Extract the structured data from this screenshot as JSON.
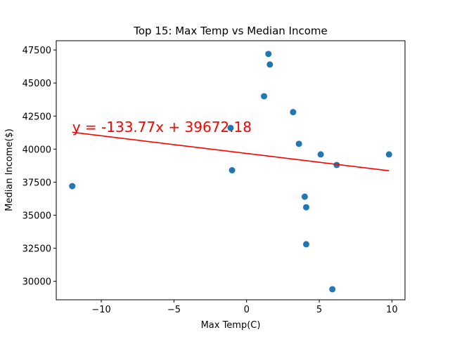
{
  "chart_data": {
    "type": "scatter",
    "title": "Top 15: Max Temp vs Median Income",
    "xlabel": "Max Temp(C)",
    "ylabel": "Median Income($)",
    "xlim": [
      -13.1,
      10.9
    ],
    "ylim": [
      28600,
      48200
    ],
    "xticks": [
      -10,
      -5,
      0,
      5,
      10
    ],
    "xtick_labels": [
      "−10",
      "−5",
      "0",
      "5",
      "10"
    ],
    "yticks": [
      30000,
      32500,
      35000,
      37500,
      40000,
      42500,
      45000,
      47500
    ],
    "ytick_labels": [
      "30000",
      "32500",
      "35000",
      "37500",
      "40000",
      "42500",
      "45000",
      "47500"
    ],
    "grid": false,
    "points": {
      "x": [
        -12.0,
        -1.1,
        -1.0,
        1.2,
        1.5,
        1.6,
        3.2,
        3.6,
        4.0,
        4.1,
        4.1,
        5.1,
        5.9,
        6.2,
        9.8
      ],
      "y": [
        37200,
        41600,
        38400,
        44000,
        47200,
        46400,
        42800,
        40400,
        36400,
        35600,
        32800,
        39600,
        29400,
        38800,
        39600
      ]
    },
    "regression": {
      "slope": -133.77,
      "intercept": 39672.18,
      "x_range": [
        -12.0,
        9.8
      ],
      "equation_text": "y = -133.77x + 39672.18",
      "text_anchor_x": -12.0,
      "text_anchor_y": 41200
    },
    "colors": {
      "points": "#1f77b4",
      "regression": "#ff0000",
      "axes": "#000000"
    }
  }
}
